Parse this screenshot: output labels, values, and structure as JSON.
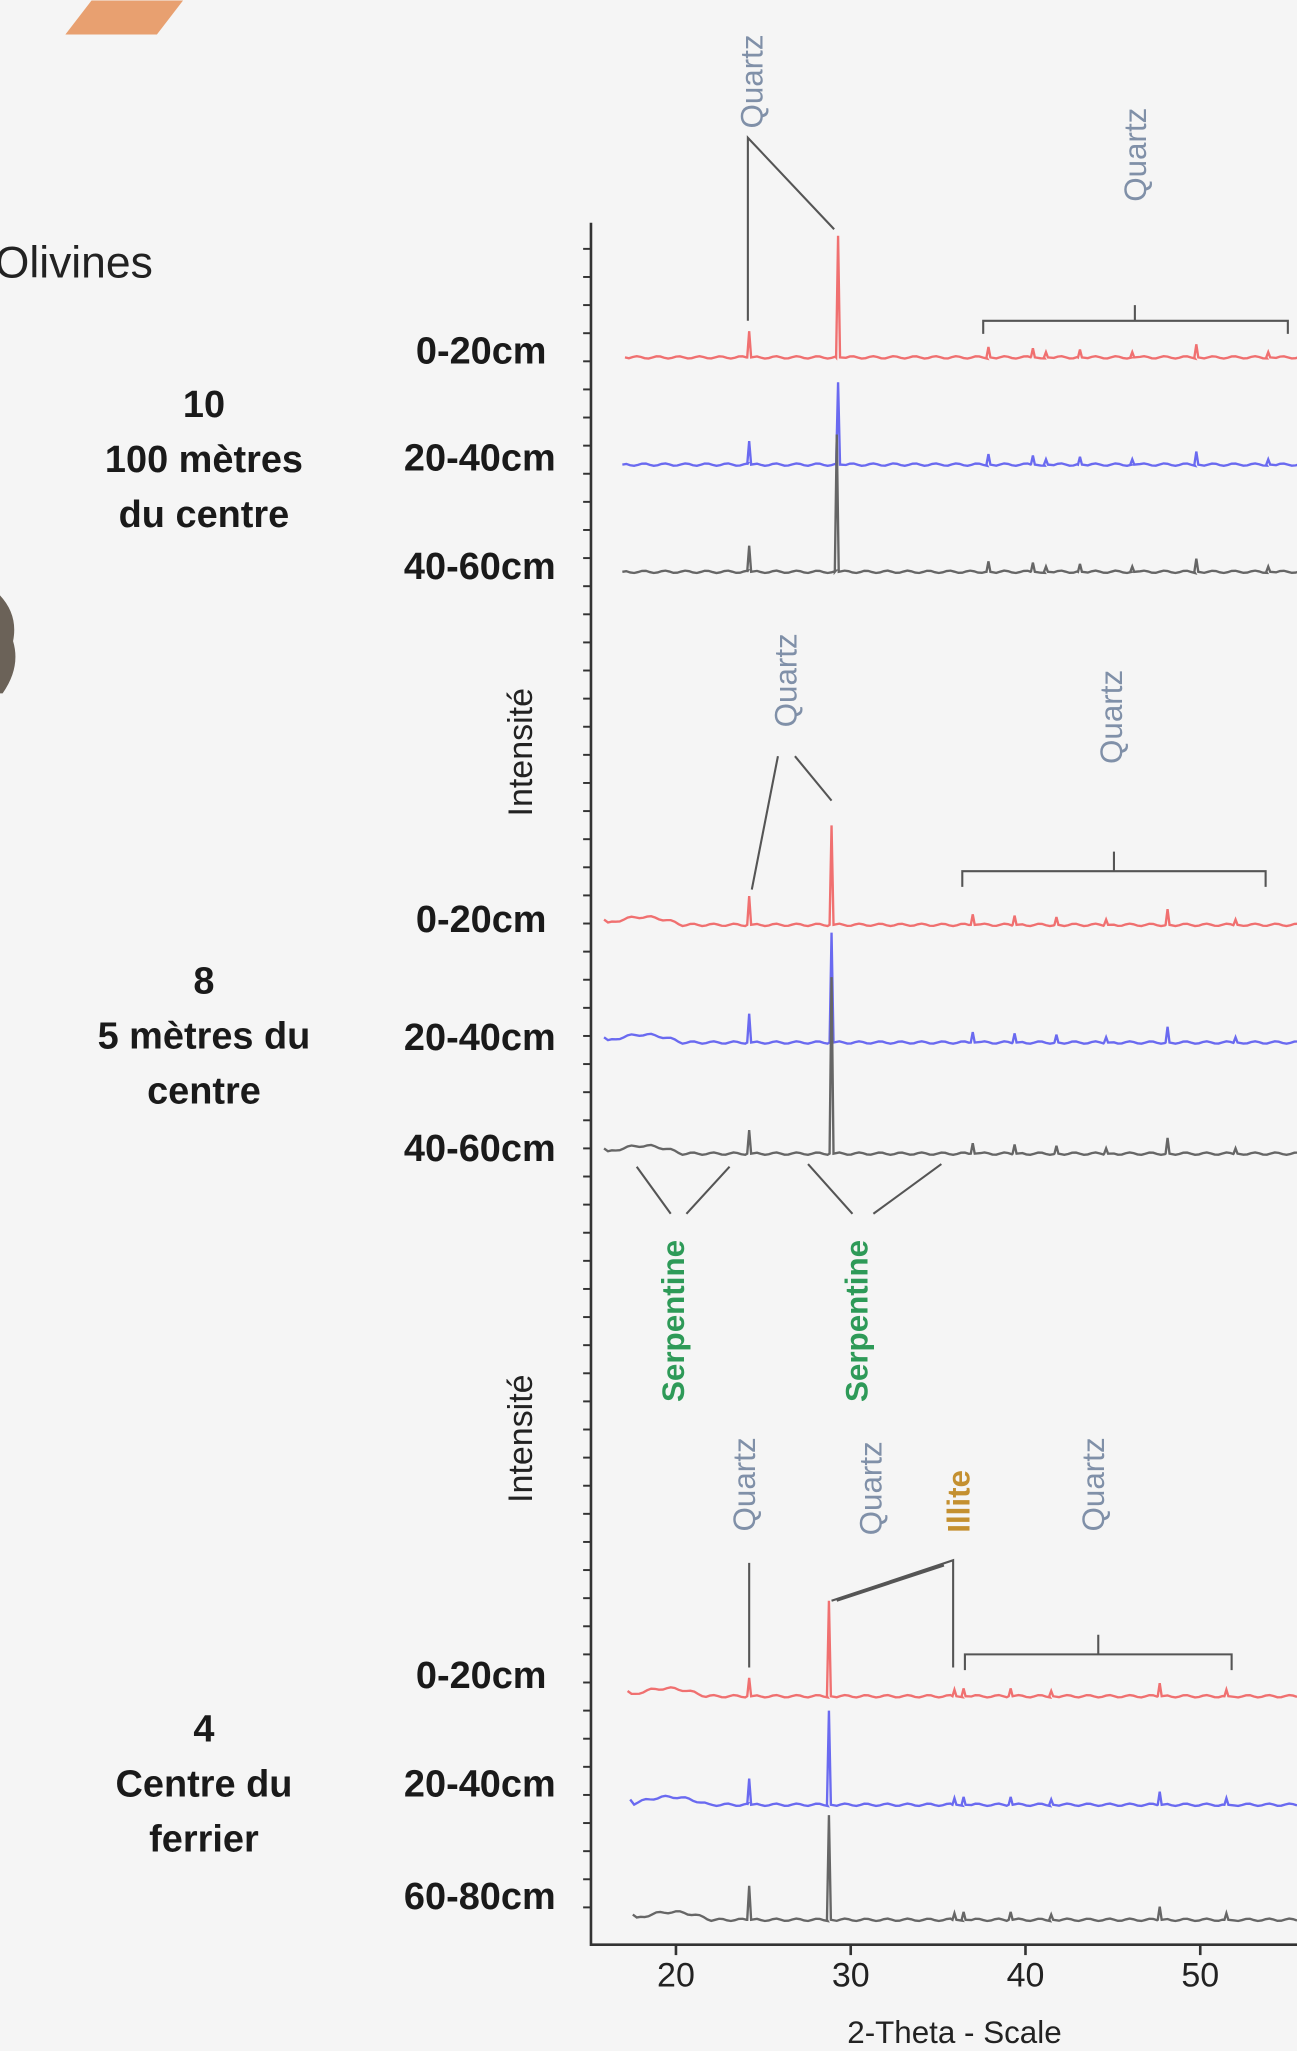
{
  "header": {
    "partial_label": "Olivines"
  },
  "groups": [
    {
      "label_lines": [
        "10",
        "100 mètres",
        "du centre"
      ],
      "depths": [
        "0-20cm",
        "20-40cm",
        "40-60cm"
      ]
    },
    {
      "label_lines": [
        "8",
        "5 mètres du",
        "centre"
      ],
      "depths": [
        "0-20cm",
        "20-40cm",
        "40-60cm"
      ]
    },
    {
      "label_lines": [
        "4",
        "Centre du",
        "ferrier"
      ],
      "depths": [
        "0-20cm",
        "20-40cm",
        "60-80cm"
      ]
    }
  ],
  "y_axis_labels": [
    "Intensité",
    "Intensité"
  ],
  "annotations": [
    "Quartz",
    "Quartz",
    "Quartz",
    "Quartz",
    "Serpentine",
    "Serpentine",
    "Quartz",
    "Quartz",
    "Illite",
    "Quartz"
  ],
  "x_axis": {
    "title": "2-Theta - Scale",
    "ticks": [
      20,
      30,
      40,
      50
    ]
  }
}
